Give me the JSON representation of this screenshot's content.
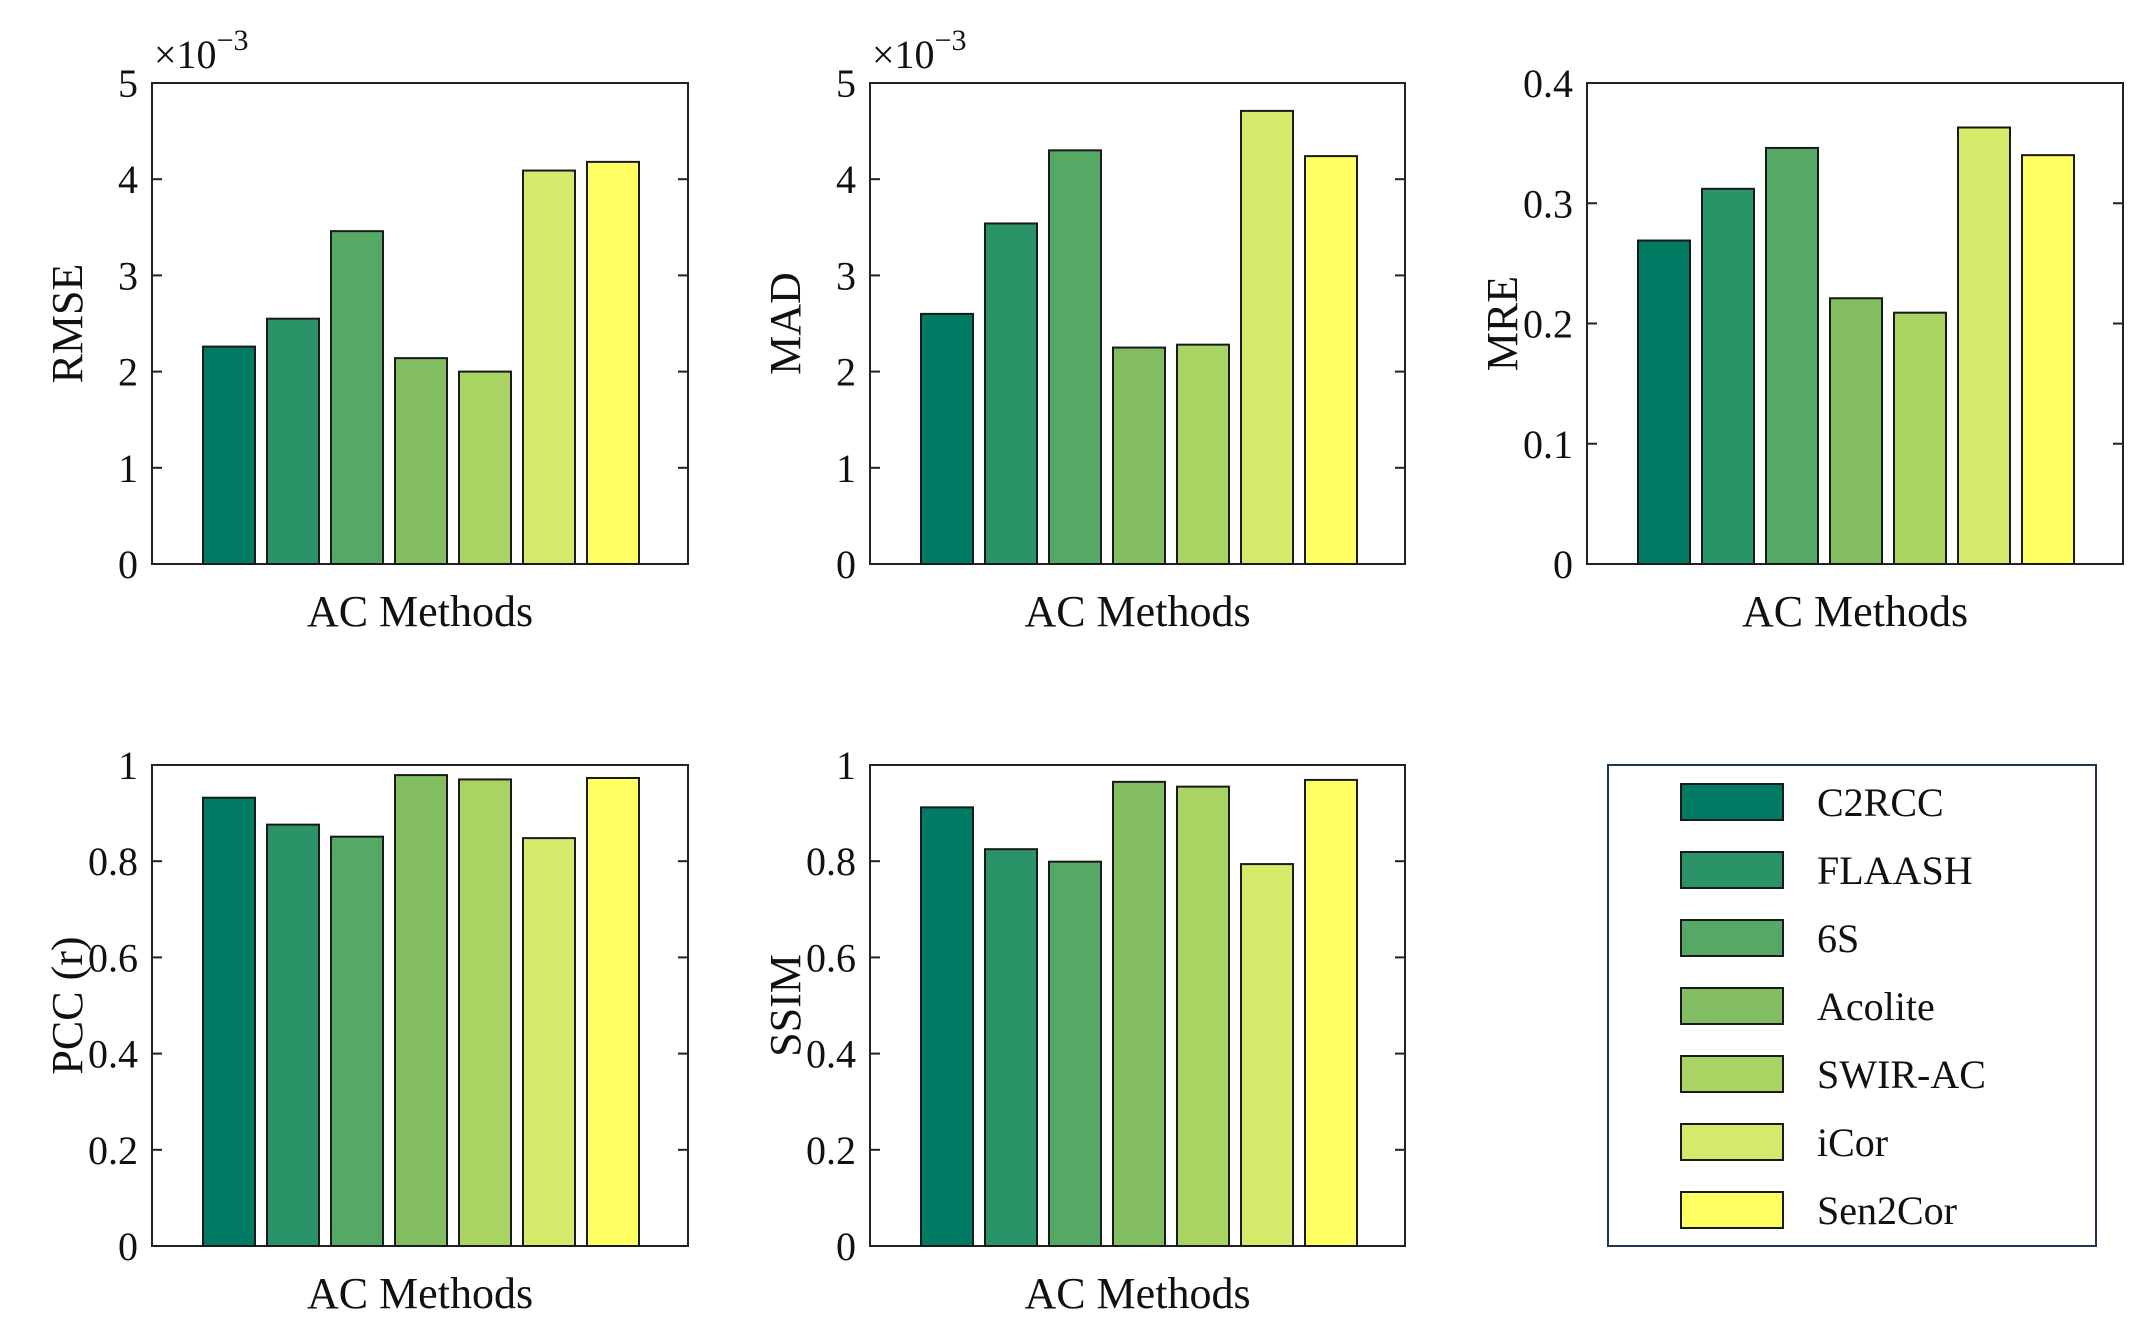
{
  "methods": [
    "C2RCC",
    "FLAASH",
    "6S",
    "Acolite",
    "SWIR-AC",
    "iCor",
    "Sen2Cor"
  ],
  "colors": [
    "#007a62",
    "#2a9468",
    "#55a964",
    "#82bd62",
    "#a9d464",
    "#d4ea6a",
    "#ffff62"
  ],
  "chart_data": [
    {
      "type": "bar",
      "title": "",
      "xlabel": "AC Methods",
      "ylabel": "RMSE",
      "multiplier": "×10",
      "multiplier_exp": "−3",
      "ylim": [
        0,
        5
      ],
      "yticks": [
        0,
        1,
        2,
        3,
        4,
        5
      ],
      "categories": [
        "C2RCC",
        "FLAASH",
        "6S",
        "Acolite",
        "SWIR-AC",
        "iCor",
        "Sen2Cor"
      ],
      "values": [
        2.26,
        2.55,
        3.46,
        2.14,
        2.0,
        4.09,
        4.18
      ]
    },
    {
      "type": "bar",
      "title": "",
      "xlabel": "AC Methods",
      "ylabel": "MAD",
      "multiplier": "×10",
      "multiplier_exp": "−3",
      "ylim": [
        0,
        5
      ],
      "yticks": [
        0,
        1,
        2,
        3,
        4,
        5
      ],
      "categories": [
        "C2RCC",
        "FLAASH",
        "6S",
        "Acolite",
        "SWIR-AC",
        "iCor",
        "Sen2Cor"
      ],
      "values": [
        2.6,
        3.54,
        4.3,
        2.25,
        2.28,
        4.71,
        4.24
      ]
    },
    {
      "type": "bar",
      "title": "",
      "xlabel": "AC Methods",
      "ylabel": "MRE",
      "multiplier": "",
      "multiplier_exp": "",
      "ylim": [
        0,
        0.4
      ],
      "yticks": [
        0,
        0.1,
        0.2,
        0.3,
        0.4
      ],
      "categories": [
        "C2RCC",
        "FLAASH",
        "6S",
        "Acolite",
        "SWIR-AC",
        "iCor",
        "Sen2Cor"
      ],
      "values": [
        0.269,
        0.312,
        0.346,
        0.221,
        0.209,
        0.363,
        0.34
      ]
    },
    {
      "type": "bar",
      "title": "",
      "xlabel": "AC Methods",
      "ylabel": "PCC (r)",
      "multiplier": "",
      "multiplier_exp": "",
      "ylim": [
        0,
        1
      ],
      "yticks": [
        0,
        0.2,
        0.4,
        0.6,
        0.8,
        1
      ],
      "categories": [
        "C2RCC",
        "FLAASH",
        "6S",
        "Acolite",
        "SWIR-AC",
        "iCor",
        "Sen2Cor"
      ],
      "values": [
        0.932,
        0.876,
        0.851,
        0.979,
        0.97,
        0.848,
        0.973
      ]
    },
    {
      "type": "bar",
      "title": "",
      "xlabel": "AC Methods",
      "ylabel": "SSIM",
      "multiplier": "",
      "multiplier_exp": "",
      "ylim": [
        0,
        1
      ],
      "yticks": [
        0,
        0.2,
        0.4,
        0.6,
        0.8,
        1
      ],
      "categories": [
        "C2RCC",
        "FLAASH",
        "6S",
        "Acolite",
        "SWIR-AC",
        "iCor",
        "Sen2Cor"
      ],
      "values": [
        0.912,
        0.825,
        0.799,
        0.965,
        0.955,
        0.794,
        0.969
      ]
    }
  ],
  "legend": {
    "placement": "bottom-right",
    "items": [
      "C2RCC",
      "FLAASH",
      "6S",
      "Acolite",
      "SWIR-AC",
      "iCor",
      "Sen2Cor"
    ]
  }
}
